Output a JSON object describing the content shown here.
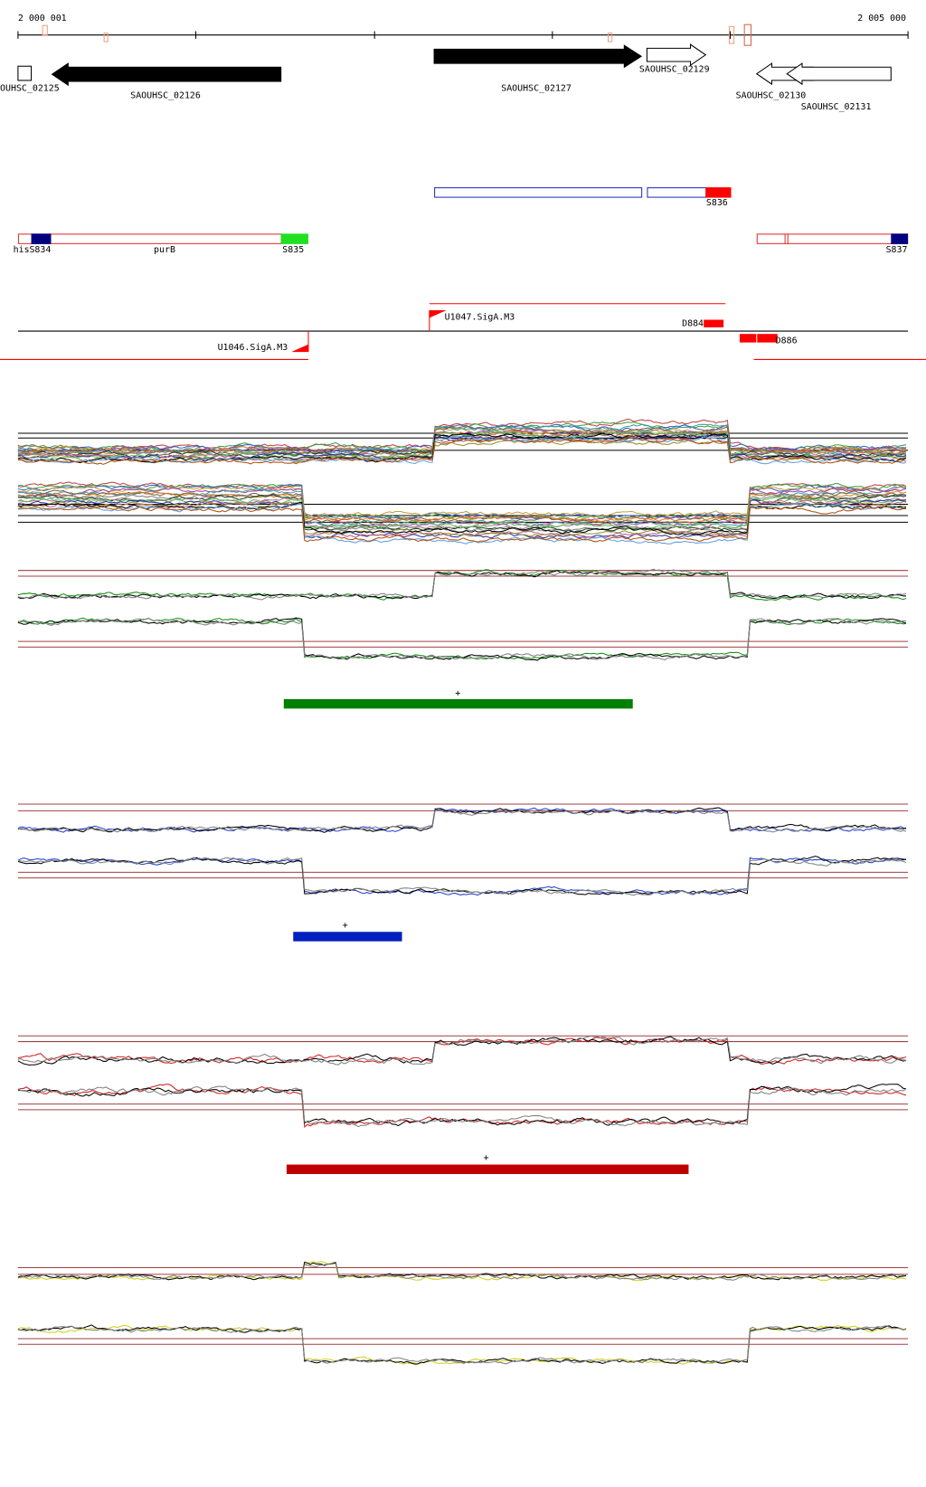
{
  "ruler": {
    "start": "2 000 001",
    "end": "2 005 000"
  },
  "genes": [
    "OUHSC_02125",
    "SAOUHSC_02126",
    "SAOUHSC_02127",
    "SAOUHSC_02129",
    "SAOUHSC_02130",
    "SAOUHSC_02131"
  ],
  "features": [
    "S836",
    "his",
    "S834",
    "purB",
    "S835",
    "S837"
  ],
  "regulators": [
    "U1047.SigA.M3",
    "U1046.SigA.M3",
    "D884",
    "D886"
  ],
  "conditions": [
    {
      "marker": "+"
    },
    {
      "marker": "+"
    },
    {
      "marker": "+"
    }
  ]
}
